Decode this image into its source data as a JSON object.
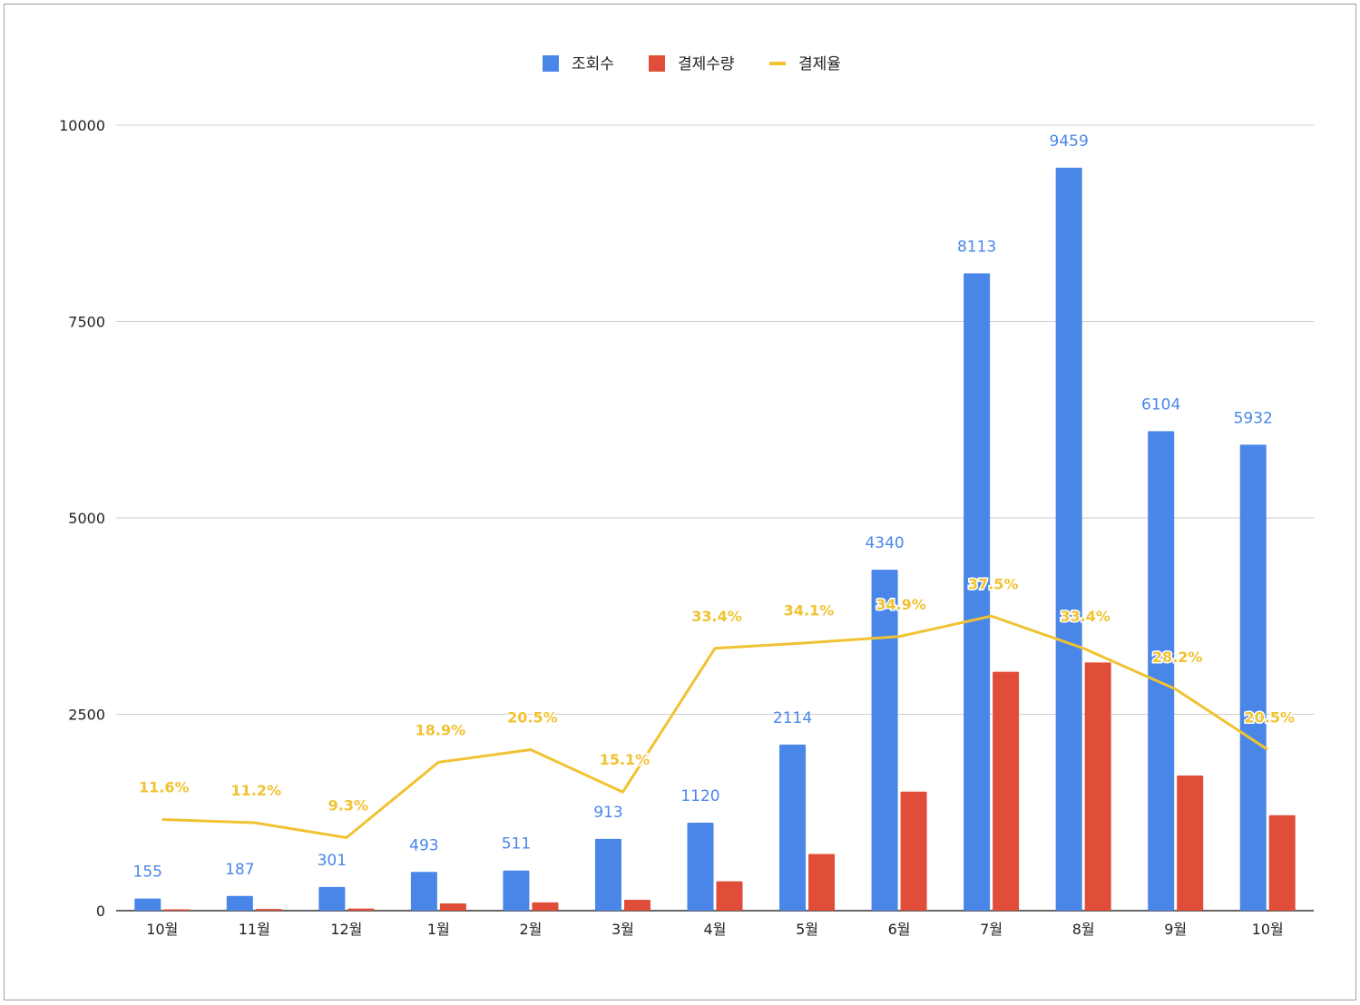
{
  "chart_data": {
    "type": "bar",
    "categories": [
      "10월",
      "11월",
      "12월",
      "1월",
      "2월",
      "3월",
      "4월",
      "5월",
      "6월",
      "7월",
      "8월",
      "9월",
      "10월"
    ],
    "series": [
      {
        "name": "조회수",
        "kind": "bar",
        "color": "#4a86e8",
        "values": [
          155,
          187,
          301,
          493,
          511,
          913,
          1120,
          2114,
          4340,
          8113,
          9459,
          6104,
          5932
        ],
        "value_labels": [
          "155",
          "187",
          "301",
          "493",
          "511",
          "913",
          "1120",
          "2114",
          "4340",
          "8113",
          "9459",
          "6104",
          "5932"
        ]
      },
      {
        "name": "결제수량",
        "kind": "bar",
        "color": "#e04e39",
        "values": [
          18,
          21,
          28,
          93,
          105,
          138,
          374,
          721,
          1515,
          3042,
          3159,
          1721,
          1216
        ]
      },
      {
        "name": "결제율",
        "kind": "line",
        "color": "#f1c232",
        "values": [
          11.6,
          11.2,
          9.3,
          18.9,
          20.5,
          15.1,
          33.4,
          34.1,
          34.9,
          37.5,
          33.4,
          28.2,
          20.5
        ],
        "value_labels": [
          "11.6%",
          "11.2%",
          "9.3%",
          "18.9%",
          "20.5%",
          "15.1%",
          "33.4%",
          "34.1%",
          "34.9%",
          "37.5%",
          "33.4%",
          "28.2%",
          "20.5%"
        ]
      }
    ],
    "yticks": [
      "0",
      "2500",
      "5000",
      "7500",
      "10000"
    ],
    "ylim": [
      0,
      10000
    ],
    "title": "",
    "xlabel": "",
    "ylabel": "",
    "legend_position": "top-center",
    "grid": true
  }
}
